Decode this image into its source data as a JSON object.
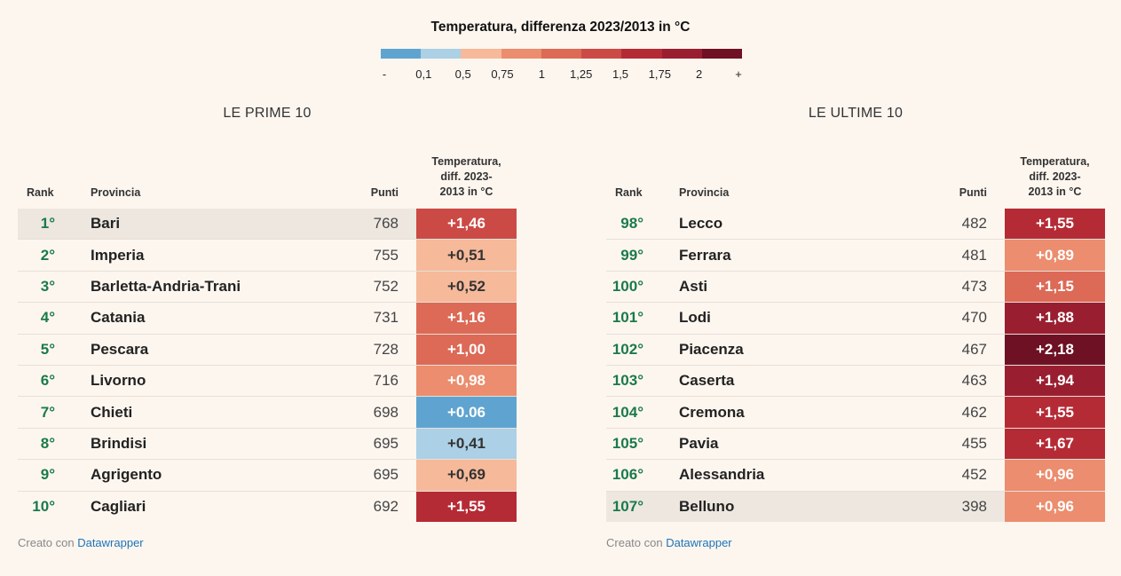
{
  "legend": {
    "title": "Temperatura, differenza 2023/2013 in °C",
    "colors": [
      "#5fa4d0",
      "#acd0e6",
      "#f6b99a",
      "#eb8d6e",
      "#dc6a56",
      "#cc4a45",
      "#b52b35",
      "#991f30",
      "#6e1124"
    ],
    "ticks": [
      "-",
      "0,1",
      "0,5",
      "0,75",
      "1",
      "1,25",
      "1,5",
      "1,75",
      "2",
      "+"
    ]
  },
  "headers": {
    "rank": "Rank",
    "provincia": "Provincia",
    "punti": "Punti",
    "temp": [
      "Temperatura,",
      "diff. 2023-",
      "2013 in °C"
    ]
  },
  "footer": {
    "prefix": "Creato con ",
    "link": "Datawrapper"
  },
  "chart_data": [
    {
      "type": "table",
      "title": "LE PRIME 10",
      "columns": [
        "Rank",
        "Provincia",
        "Punti",
        "Temperatura, diff. 2023-2013 in °C"
      ],
      "rows": [
        {
          "rank": "1°",
          "provincia": "Bari",
          "punti": 768,
          "temp_label": "+1,46",
          "temp": 1.46,
          "color": "#cc4a45",
          "highlight": true
        },
        {
          "rank": "2°",
          "provincia": "Imperia",
          "punti": 755,
          "temp_label": "+0,51",
          "temp": 0.51,
          "color": "#f6b99a",
          "text_dark": true
        },
        {
          "rank": "3°",
          "provincia": "Barletta-Andria-Trani",
          "punti": 752,
          "temp_label": "+0,52",
          "temp": 0.52,
          "color": "#f6b99a",
          "text_dark": true
        },
        {
          "rank": "4°",
          "provincia": "Catania",
          "punti": 731,
          "temp_label": "+1,16",
          "temp": 1.16,
          "color": "#dc6a56"
        },
        {
          "rank": "5°",
          "provincia": "Pescara",
          "punti": 728,
          "temp_label": "+1,00",
          "temp": 1.0,
          "color": "#dc6a56"
        },
        {
          "rank": "6°",
          "provincia": "Livorno",
          "punti": 716,
          "temp_label": "+0,98",
          "temp": 0.98,
          "color": "#eb8d6e"
        },
        {
          "rank": "7°",
          "provincia": "Chieti",
          "punti": 698,
          "temp_label": "+0.06",
          "temp": 0.06,
          "color": "#5fa4d0"
        },
        {
          "rank": "8°",
          "provincia": "Brindisi",
          "punti": 695,
          "temp_label": "+0,41",
          "temp": 0.41,
          "color": "#acd0e6",
          "text_dark": true
        },
        {
          "rank": "9°",
          "provincia": "Agrigento",
          "punti": 695,
          "temp_label": "+0,69",
          "temp": 0.69,
          "color": "#f6b99a",
          "text_dark": true
        },
        {
          "rank": "10°",
          "provincia": "Cagliari",
          "punti": 692,
          "temp_label": "+1,55",
          "temp": 1.55,
          "color": "#b52b35"
        }
      ]
    },
    {
      "type": "table",
      "title": "LE ULTIME 10",
      "columns": [
        "Rank",
        "Provincia",
        "Punti",
        "Temperatura, diff. 2023-2013 in °C"
      ],
      "rows": [
        {
          "rank": "98°",
          "provincia": "Lecco",
          "punti": 482,
          "temp_label": "+1,55",
          "temp": 1.55,
          "color": "#b52b35"
        },
        {
          "rank": "99°",
          "provincia": "Ferrara",
          "punti": 481,
          "temp_label": "+0,89",
          "temp": 0.89,
          "color": "#eb8d6e"
        },
        {
          "rank": "100°",
          "provincia": "Asti",
          "punti": 473,
          "temp_label": "+1,15",
          "temp": 1.15,
          "color": "#dc6a56"
        },
        {
          "rank": "101°",
          "provincia": "Lodi",
          "punti": 470,
          "temp_label": "+1,88",
          "temp": 1.88,
          "color": "#991f30"
        },
        {
          "rank": "102°",
          "provincia": "Piacenza",
          "punti": 467,
          "temp_label": "+2,18",
          "temp": 2.18,
          "color": "#6e1124"
        },
        {
          "rank": "103°",
          "provincia": "Caserta",
          "punti": 463,
          "temp_label": "+1,94",
          "temp": 1.94,
          "color": "#991f30"
        },
        {
          "rank": "104°",
          "provincia": "Cremona",
          "punti": 462,
          "temp_label": "+1,55",
          "temp": 1.55,
          "color": "#b52b35"
        },
        {
          "rank": "105°",
          "provincia": "Pavia",
          "punti": 455,
          "temp_label": "+1,67",
          "temp": 1.67,
          "color": "#b52b35"
        },
        {
          "rank": "106°",
          "provincia": "Alessandria",
          "punti": 452,
          "temp_label": "+0,96",
          "temp": 0.96,
          "color": "#eb8d6e"
        },
        {
          "rank": "107°",
          "provincia": "Belluno",
          "punti": 398,
          "temp_label": "+0,96",
          "temp": 0.96,
          "color": "#eb8d6e",
          "highlight": true
        }
      ]
    }
  ]
}
